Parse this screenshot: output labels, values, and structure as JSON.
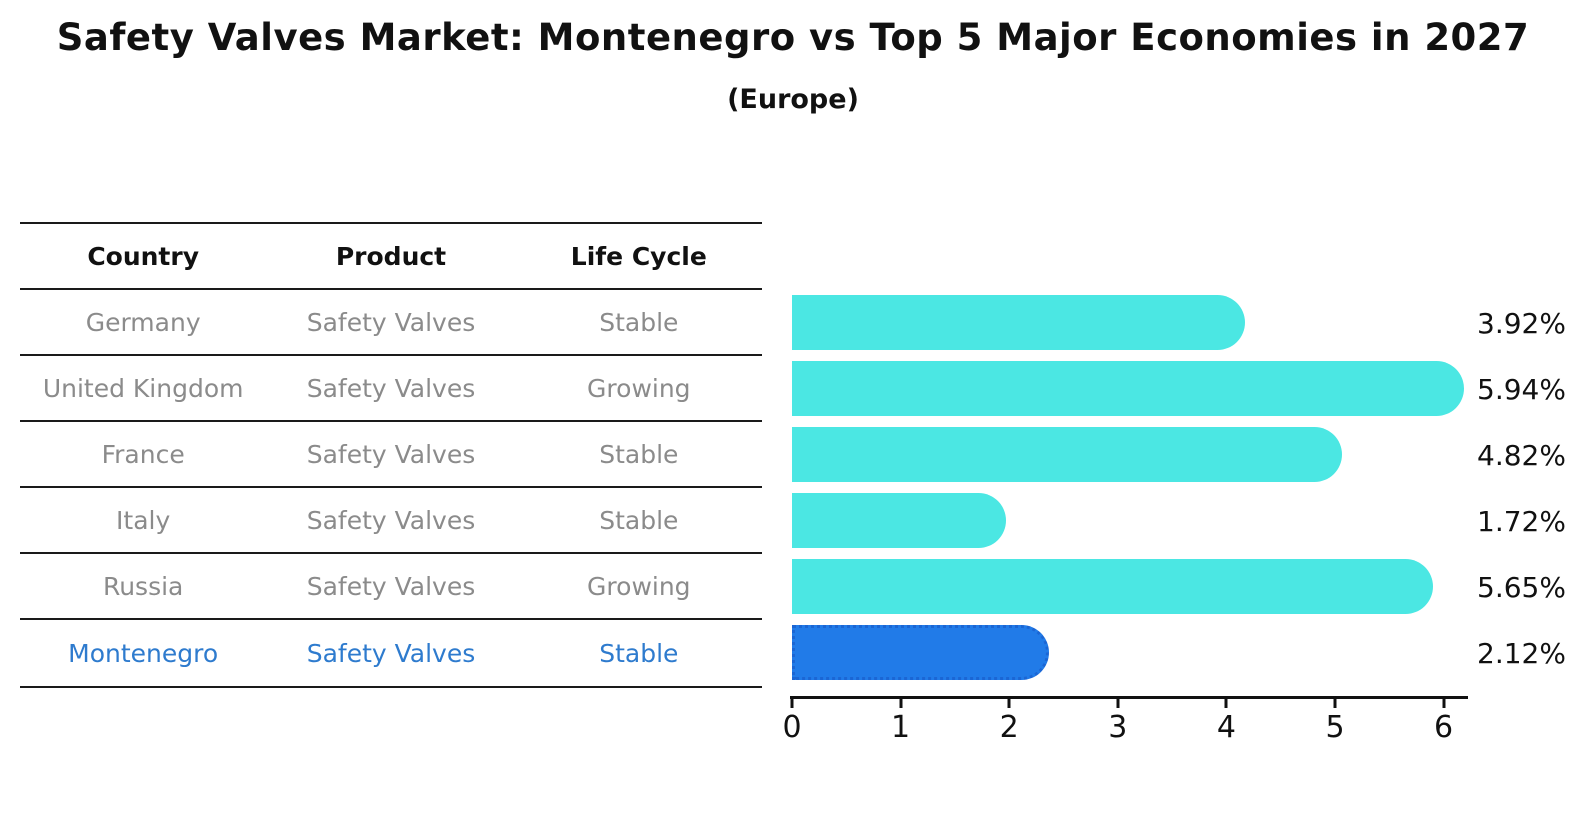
{
  "title": "Safety Valves Market: Montenegro vs Top 5 Major Economies in 2027",
  "subtitle": "(Europe)",
  "table": {
    "headers": [
      "Country",
      "Product",
      "Life Cycle"
    ],
    "rows": [
      {
        "country": "Germany",
        "product": "Safety Valves",
        "life_cycle": "Stable",
        "highlight": false
      },
      {
        "country": "United Kingdom",
        "product": "Safety Valves",
        "life_cycle": "Growing",
        "highlight": false
      },
      {
        "country": "France",
        "product": "Safety Valves",
        "life_cycle": "Stable",
        "highlight": false
      },
      {
        "country": "Italy",
        "product": "Safety Valves",
        "life_cycle": "Stable",
        "highlight": false
      },
      {
        "country": "Russia",
        "product": "Safety Valves",
        "life_cycle": "Growing",
        "highlight": false
      },
      {
        "country": "Montenegro",
        "product": "Safety Valves",
        "life_cycle": "Stable",
        "highlight": true
      }
    ]
  },
  "chart_data": {
    "type": "bar",
    "orientation": "horizontal",
    "title": "Safety Valves Market: Montenegro vs Top 5 Major Economies in 2027 (Europe)",
    "categories": [
      "Germany",
      "United Kingdom",
      "France",
      "Italy",
      "Russia",
      "Montenegro"
    ],
    "values": [
      3.92,
      5.94,
      4.82,
      1.72,
      5.65,
      2.12
    ],
    "value_labels": [
      "3.92%",
      "5.94%",
      "4.82%",
      "1.72%",
      "5.65%",
      "2.12%"
    ],
    "x_ticks": [
      "0",
      "1",
      "2",
      "3",
      "4",
      "5",
      "6"
    ],
    "xlim": [
      0,
      6.23
    ],
    "grid": false,
    "legend": false,
    "highlight_index": 5,
    "bar_color": "#4BE7E3",
    "highlight_color": "#217BE8",
    "highlight_border_color": "#1B66D4",
    "label_color": "#111111",
    "row_text_color": "#8b8b8b",
    "highlight_text_color": "#2E7BCE"
  }
}
